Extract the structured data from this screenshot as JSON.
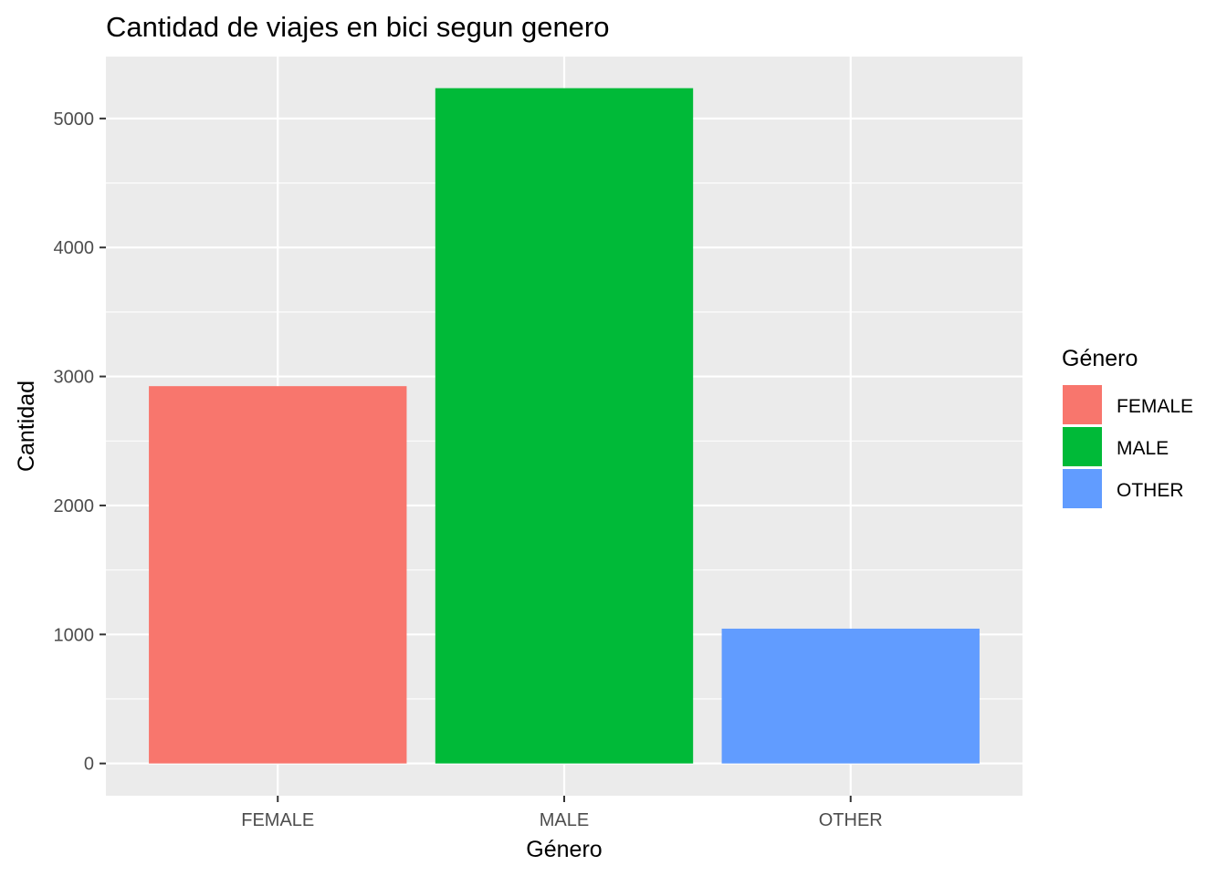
{
  "chart_data": {
    "type": "bar",
    "title": "Cantidad de viajes en bici segun genero",
    "xlabel": "Género",
    "ylabel": "Cantidad",
    "categories": [
      "FEMALE",
      "MALE",
      "OTHER"
    ],
    "values": [
      2925,
      5235,
      1045
    ],
    "colors": [
      "#F8766D",
      "#00BA38",
      "#619CFF"
    ],
    "ylim": [
      -250,
      5480
    ],
    "yticks": [
      0,
      1000,
      2000,
      3000,
      4000,
      5000
    ],
    "ytick_labels": [
      "0",
      "1000",
      "2000",
      "3000",
      "4000",
      "5000"
    ],
    "grid": true,
    "legend": {
      "title": "Género",
      "position": "right",
      "entries": [
        "FEMALE",
        "MALE",
        "OTHER"
      ]
    }
  }
}
